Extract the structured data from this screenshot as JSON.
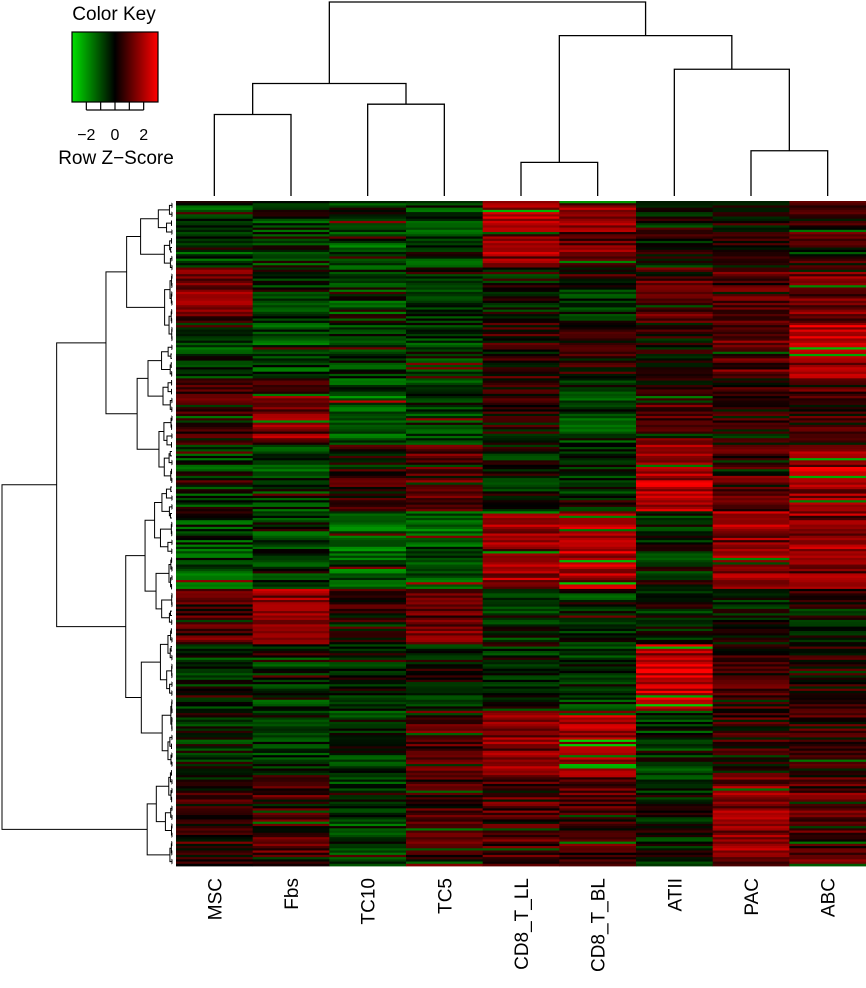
{
  "color_key": {
    "title": "Color Key",
    "label": "Row Z−Score",
    "ticks": [
      "−2",
      "0",
      "2"
    ],
    "tick_values": [
      -2,
      0,
      2
    ],
    "range": [
      -3,
      3
    ],
    "colors": {
      "low": "#00e000",
      "mid": "#000000",
      "high": "#ff0000"
    }
  },
  "chart_data": {
    "type": "heatmap",
    "title": "",
    "xlabel": "",
    "ylabel": "",
    "columns": [
      "MSC",
      "Fbs",
      "TC10",
      "TC5",
      "CD8_T_LL",
      "CD8_T_BL",
      "ATII",
      "PAC",
      "ABC"
    ],
    "value_range": [
      -3,
      3
    ],
    "color_scale": [
      "#00e000",
      "#000000",
      "#ff0000"
    ],
    "column_dendrogram": {
      "leaf_order": [
        "MSC",
        "Fbs",
        "TC10",
        "TC5",
        "CD8_T_LL",
        "CD8_T_BL",
        "ATII",
        "PAC",
        "ABC"
      ],
      "merges": [
        {
          "left": "MSC",
          "right": "Fbs",
          "height": 0.63
        },
        {
          "left": "TC10",
          "right": "TC5",
          "height": 0.71
        },
        {
          "left": "CD8_T_LL",
          "right": "CD8_T_BL",
          "height": 0.26
        },
        {
          "left": "PAC",
          "right": "ABC",
          "height": 0.35
        },
        {
          "left": "MSC+Fbs",
          "right": "TC10+TC5",
          "height": 0.87
        },
        {
          "left": "ATII",
          "right": "PAC+ABC",
          "height": 0.98
        },
        {
          "left": "CD8_T_LL+CD8_T_BL",
          "right": "ATII+PAC+ABC",
          "height": 1.24
        },
        {
          "left": "MSC+Fbs+TC10+TC5",
          "right": "CD8_T_LL+CD8_T_BL+ATII+PAC+ABC",
          "height": 1.5
        }
      ]
    },
    "row_blocks": [
      {
        "rows": "1-30",
        "values": [
          -0.8,
          -0.6,
          -0.9,
          -0.8,
          1.8,
          1.5,
          -0.2,
          0.3,
          0.6
        ]
      },
      {
        "rows": "31-55",
        "values": [
          1.5,
          -0.4,
          -0.8,
          -0.6,
          -0.3,
          -0.5,
          0.9,
          0.8,
          1.2
        ]
      },
      {
        "rows": "56-80",
        "values": [
          -0.7,
          -0.8,
          -0.7,
          -0.6,
          0.4,
          0.3,
          0.2,
          1.0,
          2.4
        ]
      },
      {
        "rows": "81-110",
        "values": [
          0.9,
          1.4,
          -1.2,
          -0.8,
          0.2,
          -0.7,
          0.8,
          0.4,
          0.7
        ]
      },
      {
        "rows": "111-140",
        "values": [
          -0.6,
          -0.7,
          0.3,
          0.9,
          -0.2,
          -0.4,
          2.3,
          0.9,
          2.1
        ]
      },
      {
        "rows": "141-175",
        "values": [
          -1.0,
          -0.9,
          -1.3,
          -1.1,
          1.9,
          2.1,
          -0.4,
          1.7,
          2.0
        ]
      },
      {
        "rows": "176-200",
        "values": [
          0.8,
          1.9,
          0.4,
          1.2,
          -0.5,
          -0.6,
          -0.3,
          -0.4,
          -0.2
        ]
      },
      {
        "rows": "201-230",
        "values": [
          -0.5,
          -0.6,
          -0.3,
          -0.2,
          -0.4,
          -0.7,
          2.6,
          0.6,
          0.3
        ]
      },
      {
        "rows": "231-260",
        "values": [
          -0.4,
          -0.5,
          -0.6,
          0.9,
          1.5,
          2.2,
          -0.5,
          0.5,
          0.6
        ]
      },
      {
        "rows": "261-300",
        "values": [
          0.6,
          0.8,
          -0.7,
          0.7,
          0.8,
          0.9,
          -0.3,
          1.6,
          1.2
        ]
      }
    ]
  }
}
